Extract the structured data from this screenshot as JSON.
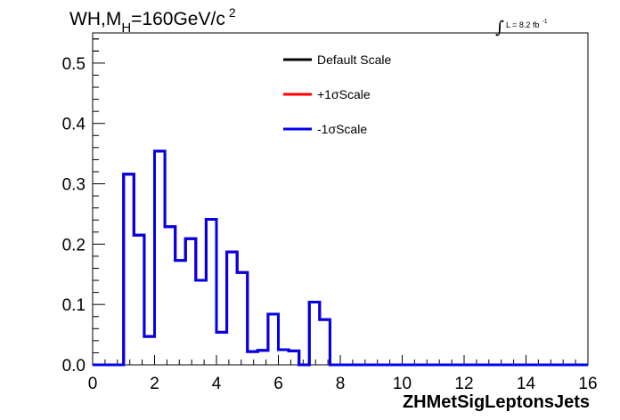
{
  "chart_data": {
    "type": "line",
    "title": {
      "prefix": "WH,M",
      "subscript": "H",
      "main": "=160GeV/c",
      "superscript": "2"
    },
    "lumi": {
      "integral_symbol": "∫",
      "text": "L = 8.2 fb",
      "superscript": "-1"
    },
    "xlabel": "ZHMetSigLeptonsJets",
    "ylabel": "",
    "xlim": [
      0,
      16
    ],
    "ylim": [
      0,
      0.55
    ],
    "x_ticks": [
      "0",
      "2",
      "4",
      "6",
      "8",
      "10",
      "12",
      "14",
      "16"
    ],
    "y_ticks": [
      "0.0",
      "0.1",
      "0.2",
      "0.3",
      "0.4",
      "0.5"
    ],
    "bin_edges": [
      0,
      0.333,
      0.667,
      1.0,
      1.333,
      1.667,
      2.0,
      2.333,
      2.667,
      3.0,
      3.333,
      3.667,
      4.0,
      4.333,
      4.667,
      5.0,
      5.333,
      5.667,
      6.0,
      6.333,
      6.667,
      7.0,
      7.333,
      7.667,
      8.0,
      16
    ],
    "series": [
      {
        "name": "Default Scale",
        "color": "#000000",
        "values": [
          0,
          0,
          0,
          0.316,
          0.215,
          0.047,
          0.354,
          0.229,
          0.173,
          0.209,
          0.14,
          0.241,
          0.054,
          0.187,
          0.153,
          0.022,
          0.024,
          0.084,
          0.025,
          0.023,
          0,
          0.104,
          0.075,
          0,
          0,
          0
        ]
      },
      {
        "name": "+1σScale",
        "color": "#ff0000",
        "values": [
          0,
          0,
          0,
          0.316,
          0.215,
          0.047,
          0.354,
          0.229,
          0.173,
          0.209,
          0.14,
          0.241,
          0.054,
          0.187,
          0.153,
          0.022,
          0.024,
          0.084,
          0.025,
          0.023,
          0,
          0.104,
          0.075,
          0,
          0,
          0
        ]
      },
      {
        "name": "-1σScale",
        "color": "#0000ee",
        "values": [
          0,
          0,
          0,
          0.316,
          0.215,
          0.047,
          0.354,
          0.229,
          0.173,
          0.209,
          0.14,
          0.241,
          0.054,
          0.187,
          0.153,
          0.022,
          0.024,
          0.084,
          0.025,
          0.023,
          0,
          0.104,
          0.075,
          0,
          0,
          0
        ]
      }
    ],
    "legend": {
      "position": "top-center",
      "entries": [
        "Default Scale",
        "+1σScale",
        "-1σScale"
      ]
    },
    "grid": false
  }
}
